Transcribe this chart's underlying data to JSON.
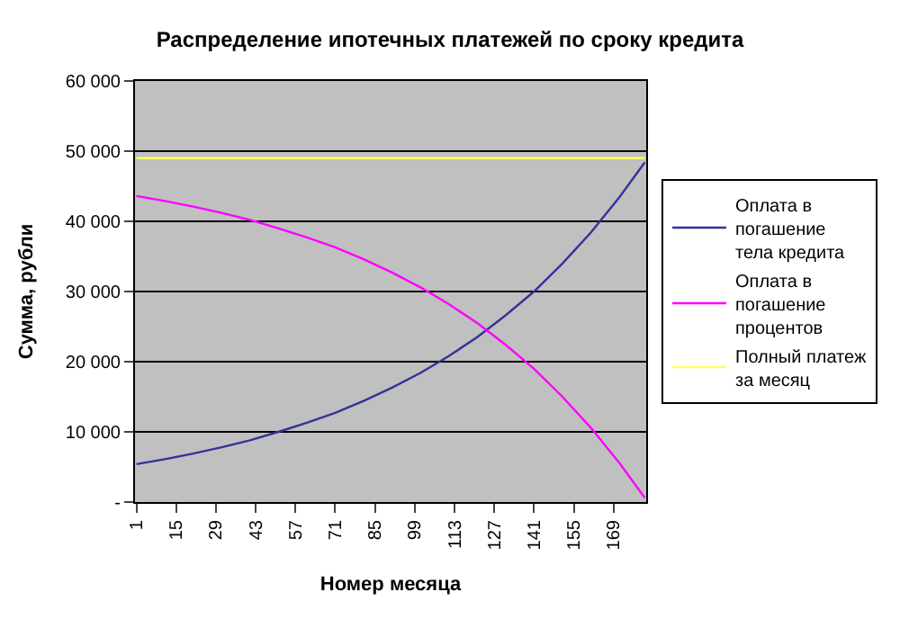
{
  "chart_data": {
    "type": "line",
    "title": "Распределение ипотечных платежей по сроку кредита",
    "xlabel": "Номер месяца",
    "ylabel": "Сумма, рубли",
    "x": [
      1,
      11,
      21,
      31,
      41,
      51,
      61,
      71,
      81,
      91,
      101,
      111,
      121,
      131,
      141,
      151,
      161,
      171,
      180
    ],
    "series": [
      {
        "name": "Оплата в погашение тела кредита",
        "color": "#333399",
        "values": [
          5400,
          6100,
          6900,
          7800,
          8800,
          10000,
          11300,
          12700,
          14400,
          16300,
          18400,
          20800,
          23500,
          26600,
          30000,
          34000,
          38400,
          43400,
          48400
        ]
      },
      {
        "name": "Оплата в погашение процентов",
        "color": "#ff00ff",
        "values": [
          43600,
          42900,
          42100,
          41200,
          40200,
          39000,
          37700,
          36300,
          34600,
          32700,
          30600,
          28200,
          25500,
          22400,
          19000,
          15000,
          10600,
          5600,
          600
        ]
      },
      {
        "name": "Полный платеж за месяц",
        "color": "#ffff66",
        "values": [
          49000,
          49000,
          49000,
          49000,
          49000,
          49000,
          49000,
          49000,
          49000,
          49000,
          49000,
          49000,
          49000,
          49000,
          49000,
          49000,
          49000,
          49000,
          49000
        ]
      }
    ],
    "xlim": [
      0.5,
      180.5
    ],
    "xticks": [
      1,
      15,
      29,
      43,
      57,
      71,
      85,
      99,
      113,
      127,
      141,
      155,
      169
    ],
    "ylim": [
      0,
      60000
    ],
    "yticks": [
      {
        "value": 0,
        "label": "-"
      },
      {
        "value": 10000,
        "label": "10 000"
      },
      {
        "value": 20000,
        "label": "20 000"
      },
      {
        "value": 30000,
        "label": "30 000"
      },
      {
        "value": 40000,
        "label": "40 000"
      },
      {
        "value": 50000,
        "label": "50 000"
      },
      {
        "value": 60000,
        "label": "60 000"
      }
    ],
    "grid": "y",
    "legend": "right",
    "marker": "none",
    "line_style": "solid"
  }
}
